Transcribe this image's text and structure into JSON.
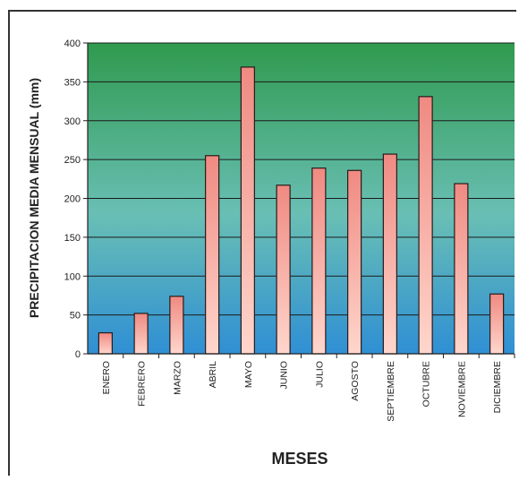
{
  "chart_data": {
    "type": "bar",
    "title": "",
    "xlabel": "MESES",
    "ylabel": "PRECIPITACION MEDIA MENSUAL (mm)",
    "categories": [
      "ENERO",
      "FEBRERO",
      "MARZO",
      "ABRIL",
      "MAYO",
      "JUNIO",
      "JULIO",
      "AGOSTO",
      "SEPTIEMBRE",
      "OCTUBRE",
      "NOVIEMBRE",
      "DICIEMBRE"
    ],
    "values": [
      27,
      52,
      74,
      255,
      369,
      217,
      239,
      236,
      257,
      331,
      219,
      77
    ],
    "ylim": [
      0,
      400
    ],
    "yticks": [
      0,
      50,
      100,
      150,
      200,
      250,
      300,
      350,
      400
    ],
    "grid": true,
    "legend": "none",
    "colors": {
      "plot_top": "#2f9a4e",
      "plot_mid": "#69bfb4",
      "plot_bottom": "#2f8fd4",
      "bar_top": "#ef8a82",
      "bar_bottom": "#ffd6cc",
      "bar_stroke": "#2a1a1a",
      "grid": "#1a1a1a"
    }
  }
}
